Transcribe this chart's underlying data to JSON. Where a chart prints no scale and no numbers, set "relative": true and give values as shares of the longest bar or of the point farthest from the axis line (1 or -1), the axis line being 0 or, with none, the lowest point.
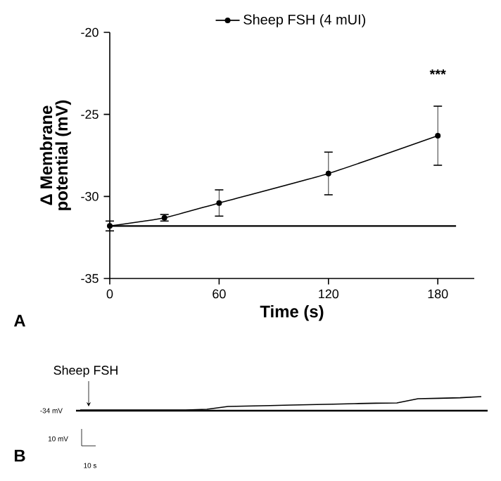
{
  "chart_data": [
    {
      "type": "line",
      "xlabel": "Time (s)",
      "ylabel": "Δ Membrane potential (mV)",
      "x": [
        0,
        30,
        60,
        120,
        180
      ],
      "series": [
        {
          "name": "Sheep FSH (4 mUI)",
          "color": "#000000",
          "values": [
            -31.8,
            -31.3,
            -30.4,
            -28.6,
            -26.3
          ],
          "errors": [
            0.3,
            0.2,
            0.8,
            1.3,
            1.8
          ]
        }
      ],
      "xlim": [
        0,
        200
      ],
      "ylim": [
        -35,
        -20
      ],
      "xticks": [
        0,
        60,
        120,
        180
      ],
      "yticks": [
        -35,
        -30,
        -25,
        -20
      ],
      "legend": "top",
      "marker": "circle",
      "ref_lines": [
        {
          "axis": "y",
          "value": -31.8
        }
      ],
      "annotations": [
        "***",
        "A"
      ]
    },
    {
      "type": "line",
      "relative": true,
      "categories": [
        null,
        null,
        null,
        null,
        null,
        null,
        null,
        null,
        null,
        null,
        null,
        null,
        null,
        null,
        null,
        null,
        null,
        null,
        null,
        null
      ],
      "series": [
        {
          "color": "#000000",
          "values": [
            0.05,
            0.05,
            0.05,
            0.05,
            0.05,
            0.05,
            0.1,
            0.3,
            0.33,
            0.36,
            0.4,
            0.43,
            0.46,
            0.5,
            0.53,
            0.55,
            0.85,
            0.88,
            0.92,
            1.0
          ]
        }
      ],
      "ref_lines": [
        {
          "axis": "y",
          "value": 0,
          "label": "-34 mV"
        }
      ],
      "annotations": [
        "Sheep FSH",
        "10 mV",
        "10 s",
        "B"
      ]
    }
  ]
}
